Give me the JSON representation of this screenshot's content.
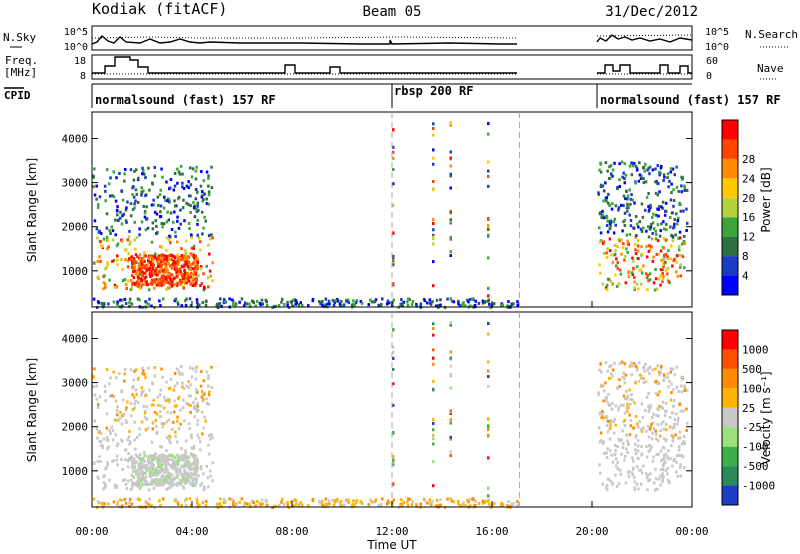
{
  "header": {
    "station": "Kodiak (fitACF)",
    "beam": "Beam 05",
    "date": "31/Dec/2012"
  },
  "strip_labels": {
    "nsky": "N.Sky",
    "nsearch": "N.Search",
    "freq_line1": "Freq.",
    "freq_line2": "[MHz]",
    "nave": "Nave",
    "cpid": "CPID",
    "nsky_ticks": [
      "10^5",
      "10^0"
    ],
    "nsearch_ticks": [
      "10^5",
      "10^0"
    ],
    "freq_ticks": [
      "18",
      "8"
    ],
    "nave_ticks": [
      "60",
      "0"
    ]
  },
  "cpid_segments": [
    {
      "label": "normalsound (fast) 157 RF",
      "start_hour": 0
    },
    {
      "label": "rbsp 200 RF",
      "start_hour": 12
    },
    {
      "label": "normalsound (fast) 157 RF",
      "start_hour": 20.2
    }
  ],
  "colorbars": {
    "power": {
      "title": "Power [dB]",
      "ticks": [
        "4",
        "8",
        "12",
        "16",
        "20",
        "24",
        "28"
      ],
      "colors": [
        "#0000ff",
        "#1a3cc0",
        "#2f6e3f",
        "#3aa63a",
        "#b4d23c",
        "#ffc800",
        "#ff8c00",
        "#ff4500",
        "#ff0000"
      ]
    },
    "velocity": {
      "title": "Velocity [m s⁻¹]",
      "ticks": [
        "1000",
        "500",
        "100",
        "25",
        "-25",
        "-100",
        "-500",
        "-1000"
      ],
      "colors": [
        "#1e3cc8",
        "#2a8a5a",
        "#3ab04a",
        "#9be07a",
        "#c8c8c8",
        "#ffb400",
        "#ff8c00",
        "#ff5000",
        "#ff0000"
      ]
    }
  },
  "chart_data": [
    {
      "type": "heatmap",
      "name": "Power",
      "ylabel": "Slant Range [km]",
      "yticks": [
        1000,
        2000,
        3000,
        4000
      ],
      "ylim": [
        180,
        4600
      ],
      "xlim": [
        0,
        24
      ],
      "xticks": [
        "00:00",
        "04:00",
        "08:00",
        "12:00",
        "16:00",
        "20:00",
        "00:00"
      ],
      "xlabel": "Time UT",
      "data_gap_hours": [
        17.1,
        20.2
      ],
      "scatter_regions": [
        {
          "t": [
            0.0,
            4.8
          ],
          "range": [
            600,
            3400
          ],
          "color_class": "mixed"
        },
        {
          "t": [
            1.5,
            4.2
          ],
          "range": [
            700,
            1400
          ],
          "color_class": "strong"
        },
        {
          "t": [
            0.0,
            17.0
          ],
          "range": [
            200,
            400
          ],
          "color_class": "weak"
        },
        {
          "t": [
            20.2,
            23.8
          ],
          "range": [
            600,
            3500
          ],
          "color_class": "mixed"
        }
      ]
    },
    {
      "type": "heatmap",
      "name": "Velocity",
      "ylabel": "Slant Range [km]",
      "yticks": [
        1000,
        2000,
        3000,
        4000
      ],
      "ylim": [
        180,
        4600
      ],
      "xlim": [
        0,
        24
      ],
      "xticks": [
        "00:00",
        "04:00",
        "08:00",
        "12:00",
        "16:00",
        "20:00",
        "00:00"
      ],
      "xlabel": "Time UT",
      "data_gap_hours": [
        17.1,
        20.2
      ]
    }
  ]
}
